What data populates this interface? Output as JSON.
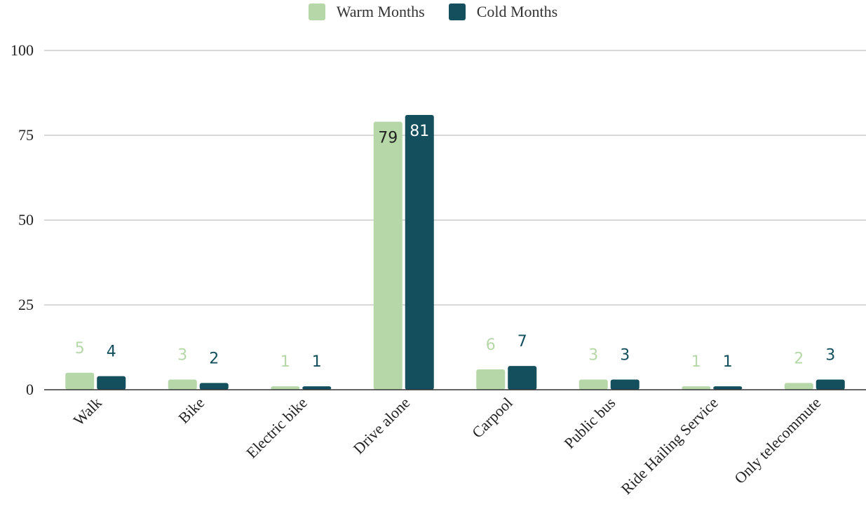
{
  "chart_data": {
    "type": "bar",
    "categories": [
      "Walk",
      "Bike",
      "Electric bike",
      "Drive alone",
      "Carpool",
      "Public bus",
      "Ride Hailing Service",
      "Only telecommute"
    ],
    "series": [
      {
        "name": "Warm Months",
        "color": "#b6d7a8",
        "values": [
          5,
          3,
          1,
          79,
          6,
          3,
          1,
          2
        ]
      },
      {
        "name": "Cold Months",
        "color": "#134f5c",
        "values": [
          4,
          2,
          1,
          81,
          7,
          3,
          1,
          3
        ]
      }
    ],
    "ylim": [
      0,
      100
    ],
    "yticks": [
      "0",
      "25",
      "50",
      "75",
      "100"
    ],
    "grid": true,
    "legend_position": "top-center",
    "title": "",
    "xlabel": "",
    "ylabel": ""
  }
}
